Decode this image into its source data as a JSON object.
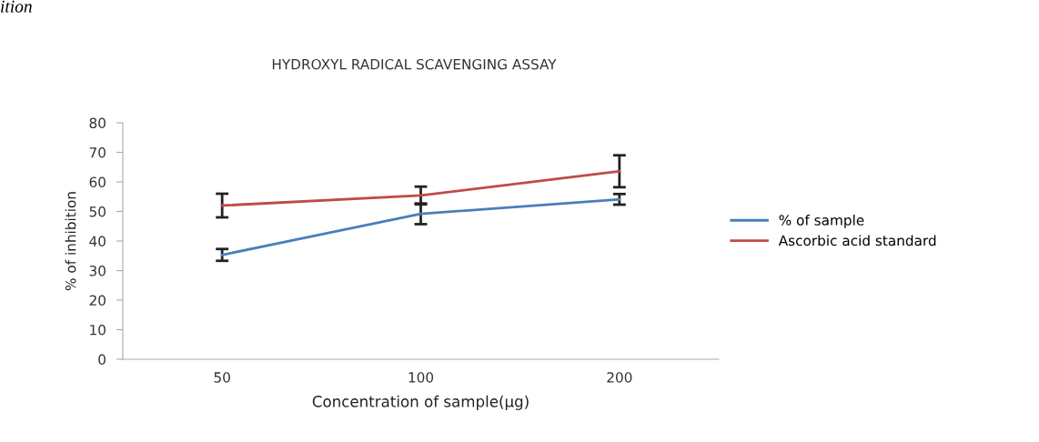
{
  "chart_data": {
    "type": "line",
    "title": "HYDROXYL RADICAL SCAVENGING ASSAY",
    "xlabel": "Concentration of sample(µg)",
    "ylabel": "% of inhibition",
    "categories": [
      "50",
      "100",
      "200"
    ],
    "series": [
      {
        "name": "% of sample",
        "color": "#4a7ebb",
        "values": [
          35.3,
          49.2,
          54.1
        ],
        "errors": [
          2,
          3.5,
          1.8
        ]
      },
      {
        "name": "Ascorbic acid standard",
        "color": "#be4b48",
        "values": [
          52,
          55.4,
          63.6
        ],
        "errors": [
          4,
          3,
          5.4
        ]
      }
    ],
    "ylim": [
      0,
      80
    ],
    "yticks": [
      0,
      10,
      20,
      30,
      40,
      50,
      60,
      70,
      80
    ],
    "grid": false,
    "legend": "right",
    "marker": "none",
    "line_style": "solid",
    "annotations": [
      "ition"
    ]
  }
}
